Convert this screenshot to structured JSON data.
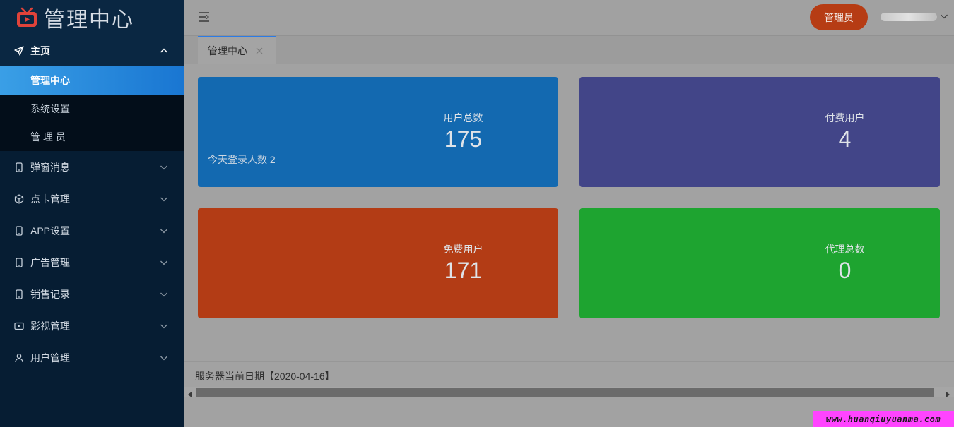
{
  "app": {
    "title": "管理中心"
  },
  "sidebar": {
    "groups": [
      {
        "label": "主页",
        "icon": "paper-plane-icon",
        "open": true,
        "items": [
          {
            "label": "管理中心",
            "active": true
          },
          {
            "label": "系统设置"
          },
          {
            "label": "管 理 员"
          }
        ]
      },
      {
        "label": "弹窗消息",
        "icon": "phone-icon"
      },
      {
        "label": "点卡管理",
        "icon": "cube-icon"
      },
      {
        "label": "APP设置",
        "icon": "phone-icon"
      },
      {
        "label": "广告管理",
        "icon": "phone-icon"
      },
      {
        "label": "销售记录",
        "icon": "phone-icon"
      },
      {
        "label": "影视管理",
        "icon": "video-icon"
      },
      {
        "label": "用户管理",
        "icon": "user-icon"
      }
    ]
  },
  "header": {
    "admin_button": "管理员"
  },
  "tabs": [
    {
      "label": "管理中心",
      "active": true
    }
  ],
  "cards": [
    {
      "label": "用户总数",
      "value": "175",
      "extra": "今天登录人数 2",
      "color": "#1369b0"
    },
    {
      "label": "付费用户",
      "value": "4",
      "color": "#424588"
    },
    {
      "label": "免费用户",
      "value": "171",
      "color": "#b33c15"
    },
    {
      "label": "代理总数",
      "value": "0",
      "color": "#1ea430"
    }
  ],
  "footer": {
    "text": "服务器当前日期【2020-04-16】"
  },
  "watermark": "www.huanqiuyuanma.com"
}
